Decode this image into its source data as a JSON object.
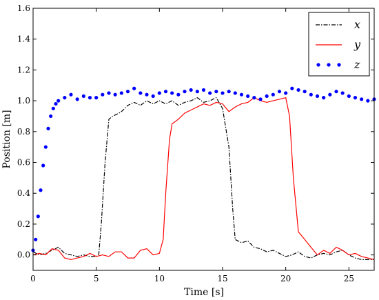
{
  "chart_data": {
    "type": "line",
    "xlabel": "Time [s]",
    "ylabel": "Position [m]",
    "xlim": [
      0,
      27
    ],
    "ylim": [
      -0.1,
      1.6
    ],
    "xticks": [
      0,
      5,
      10,
      15,
      20,
      25
    ],
    "xtick_labels": [
      "0",
      "5",
      "10",
      "15",
      "20",
      "25"
    ],
    "yticks": [
      0.0,
      0.2,
      0.4,
      0.6,
      0.8,
      1.0,
      1.2,
      1.4,
      1.6
    ],
    "ytick_labels": [
      "0.0",
      "0.2",
      "0.4",
      "0.6",
      "0.8",
      "1.0",
      "1.2",
      "1.4",
      "1.6"
    ],
    "grid": false,
    "legend_position": "top-right",
    "series": [
      {
        "name": "x",
        "style": "dashdot",
        "color": "#000000",
        "points": [
          [
            0,
            0.02
          ],
          [
            0.5,
            0.0
          ],
          [
            1,
            0.01
          ],
          [
            1.5,
            0.03
          ],
          [
            2,
            0.05
          ],
          [
            2.5,
            0.01
          ],
          [
            3,
            0.0
          ],
          [
            3.5,
            -0.01
          ],
          [
            4,
            0.0
          ],
          [
            4.5,
            -0.01
          ],
          [
            5,
            -0.01
          ],
          [
            5.2,
            0.0
          ],
          [
            5.4,
            0.2
          ],
          [
            5.7,
            0.6
          ],
          [
            6,
            0.88
          ],
          [
            6.3,
            0.9
          ],
          [
            6.8,
            0.92
          ],
          [
            7,
            0.93
          ],
          [
            7.5,
            0.97
          ],
          [
            8,
            0.99
          ],
          [
            8.5,
            0.97
          ],
          [
            9,
            1.0
          ],
          [
            9.5,
            0.98
          ],
          [
            10,
            1.0
          ],
          [
            10.5,
            0.98
          ],
          [
            11,
            1.0
          ],
          [
            11.5,
            0.97
          ],
          [
            12,
            0.99
          ],
          [
            12.5,
            1.0
          ],
          [
            13,
            1.02
          ],
          [
            13.5,
            0.99
          ],
          [
            14,
            1.0
          ],
          [
            14.5,
            1.02
          ],
          [
            15,
            0.95
          ],
          [
            15.5,
            0.7
          ],
          [
            15.8,
            0.3
          ],
          [
            16,
            0.1
          ],
          [
            16.5,
            0.08
          ],
          [
            17,
            0.09
          ],
          [
            17.5,
            0.05
          ],
          [
            18,
            0.04
          ],
          [
            18.5,
            0.02
          ],
          [
            19,
            0.03
          ],
          [
            19.5,
            0.01
          ],
          [
            20,
            -0.01
          ],
          [
            20.5,
            0.0
          ],
          [
            21,
            0.02
          ],
          [
            21.5,
            -0.01
          ],
          [
            22,
            -0.02
          ],
          [
            22.5,
            0.0
          ],
          [
            23,
            0.01
          ],
          [
            23.5,
            0.0
          ],
          [
            24,
            0.02
          ],
          [
            24.5,
            0.03
          ],
          [
            25,
            0.0
          ],
          [
            25.5,
            -0.02
          ],
          [
            26,
            -0.03
          ],
          [
            27,
            -0.03
          ]
        ]
      },
      {
        "name": "y",
        "style": "solid",
        "color": "#ff0000",
        "points": [
          [
            0,
            0.0
          ],
          [
            0.5,
            0.01
          ],
          [
            1,
            0.0
          ],
          [
            1.5,
            0.04
          ],
          [
            2,
            0.03
          ],
          [
            2.5,
            -0.02
          ],
          [
            3,
            -0.03
          ],
          [
            3.5,
            -0.02
          ],
          [
            4,
            -0.01
          ],
          [
            4.5,
            0.01
          ],
          [
            5,
            -0.01
          ],
          [
            5.5,
            0.0
          ],
          [
            6,
            -0.01
          ],
          [
            6.5,
            0.02
          ],
          [
            7,
            0.02
          ],
          [
            7.5,
            -0.02
          ],
          [
            8,
            -0.02
          ],
          [
            8.5,
            0.03
          ],
          [
            9,
            0.04
          ],
          [
            9.5,
            0.0
          ],
          [
            10,
            0.01
          ],
          [
            10.3,
            0.1
          ],
          [
            10.5,
            0.4
          ],
          [
            10.8,
            0.75
          ],
          [
            11,
            0.85
          ],
          [
            11.5,
            0.88
          ],
          [
            12,
            0.92
          ],
          [
            12.5,
            0.94
          ],
          [
            13,
            0.96
          ],
          [
            13.5,
            0.98
          ],
          [
            14,
            0.97
          ],
          [
            14.5,
            0.99
          ],
          [
            15,
            0.98
          ],
          [
            15.5,
            0.93
          ],
          [
            16,
            0.96
          ],
          [
            16.5,
            0.98
          ],
          [
            17,
            0.99
          ],
          [
            17.5,
            1.02
          ],
          [
            18,
            1.0
          ],
          [
            18.5,
            0.99
          ],
          [
            19,
            1.0
          ],
          [
            19.5,
            1.01
          ],
          [
            20,
            1.02
          ],
          [
            20.3,
            0.9
          ],
          [
            20.6,
            0.5
          ],
          [
            21,
            0.15
          ],
          [
            21.5,
            0.1
          ],
          [
            22,
            0.05
          ],
          [
            22.5,
            0.0
          ],
          [
            23,
            0.03
          ],
          [
            23.5,
            0.01
          ],
          [
            24,
            0.05
          ],
          [
            24.5,
            0.03
          ],
          [
            25,
            0.0
          ],
          [
            25.5,
            0.01
          ],
          [
            26,
            -0.01
          ],
          [
            26.5,
            -0.02
          ],
          [
            27,
            -0.03
          ]
        ]
      },
      {
        "name": "z",
        "style": "dotted-markers",
        "color": "#0000ff",
        "points": [
          [
            0,
            0.03
          ],
          [
            0.2,
            0.1
          ],
          [
            0.4,
            0.25
          ],
          [
            0.6,
            0.42
          ],
          [
            0.8,
            0.58
          ],
          [
            1,
            0.7
          ],
          [
            1.2,
            0.82
          ],
          [
            1.4,
            0.9
          ],
          [
            1.6,
            0.95
          ],
          [
            1.8,
            0.98
          ],
          [
            2,
            1.0
          ],
          [
            2.5,
            1.02
          ],
          [
            3,
            1.04
          ],
          [
            3.5,
            1.01
          ],
          [
            4,
            1.03
          ],
          [
            4.5,
            1.02
          ],
          [
            5,
            1.02
          ],
          [
            5.5,
            1.04
          ],
          [
            6,
            1.05
          ],
          [
            6.5,
            1.04
          ],
          [
            7,
            1.05
          ],
          [
            7.5,
            1.06
          ],
          [
            8,
            1.08
          ],
          [
            8.5,
            1.05
          ],
          [
            9,
            1.04
          ],
          [
            9.5,
            1.03
          ],
          [
            10,
            1.05
          ],
          [
            10.5,
            1.06
          ],
          [
            11,
            1.05
          ],
          [
            11.5,
            1.04
          ],
          [
            12,
            1.06
          ],
          [
            12.5,
            1.07
          ],
          [
            13,
            1.06
          ],
          [
            13.5,
            1.07
          ],
          [
            14,
            1.05
          ],
          [
            14.5,
            1.06
          ],
          [
            15,
            1.05
          ],
          [
            15.5,
            1.06
          ],
          [
            16,
            1.05
          ],
          [
            16.5,
            1.04
          ],
          [
            17,
            1.03
          ],
          [
            17.5,
            1.02
          ],
          [
            18,
            1.01
          ],
          [
            18.5,
            1.03
          ],
          [
            19,
            1.04
          ],
          [
            19.5,
            1.06
          ],
          [
            20,
            1.05
          ],
          [
            20.5,
            1.08
          ],
          [
            21,
            1.07
          ],
          [
            21.5,
            1.06
          ],
          [
            22,
            1.04
          ],
          [
            22.5,
            1.03
          ],
          [
            23,
            1.02
          ],
          [
            23.5,
            1.04
          ],
          [
            24,
            1.06
          ],
          [
            24.5,
            1.05
          ],
          [
            25,
            1.03
          ],
          [
            25.5,
            1.02
          ],
          [
            26,
            1.01
          ],
          [
            26.5,
            1.0
          ],
          [
            27,
            1.01
          ]
        ]
      }
    ]
  }
}
